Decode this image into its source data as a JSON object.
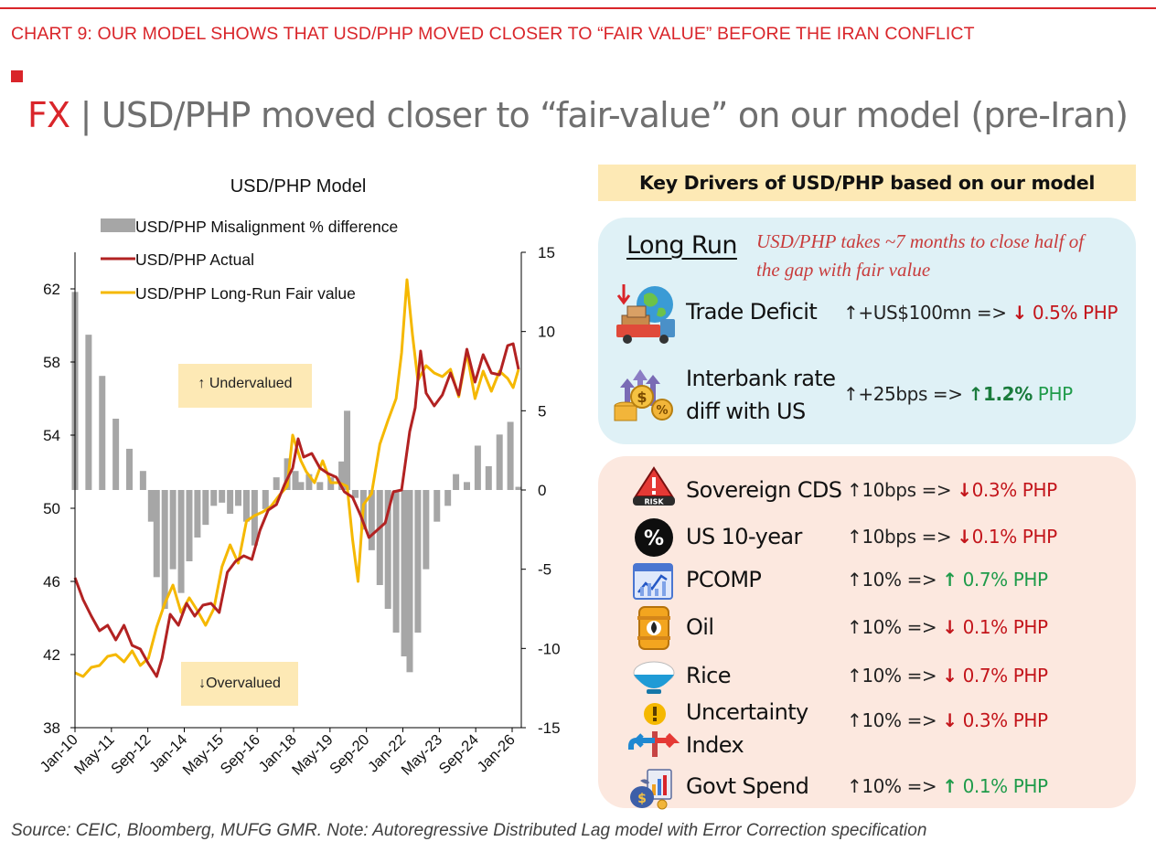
{
  "header": {
    "caption": "CHART 9: OUR MODEL SHOWS THAT USD/PHP MOVED CLOSER TO “FAIR VALUE” BEFORE THE IRAN CONFLICT",
    "headline_fx": "FX",
    "headline_sep": " | ",
    "headline_text": "USD/PHP moved closer to “fair-value” on our model (pre-Iran)"
  },
  "colors": {
    "accent": "#d9252a",
    "actual": "#b22222",
    "fair": "#f5b800",
    "bars": "#a6a6a6",
    "down": "#c3151b",
    "up": "#1f9b4a"
  },
  "chart_data": {
    "type": "line",
    "title": "USD/PHP Model",
    "x_ticks": [
      "Jan-10",
      "May-11",
      "Sep-12",
      "Jan-14",
      "May-15",
      "Sep-16",
      "Jan-18",
      "May-19",
      "Sep-20",
      "Jan-22",
      "May-23",
      "Sep-24",
      "Jan-26"
    ],
    "x_range": [
      2010.0,
      2026.4
    ],
    "left_axis": {
      "range": [
        38,
        64
      ],
      "ticks": [
        38,
        42,
        46,
        50,
        54,
        58,
        62
      ]
    },
    "right_axis": {
      "range": [
        -15,
        15
      ],
      "ticks": [
        -15,
        -10,
        -5,
        0,
        5,
        10,
        15
      ]
    },
    "legend_placement": "top-left",
    "annotations": {
      "undervalued": "↑ Undervalued",
      "overvalued": "↓Overvalued"
    },
    "series": [
      {
        "name": "USD/PHP Misalignment % difference",
        "type": "bar",
        "axis": "right",
        "x": [
          2010.0,
          2010.5,
          2011.0,
          2011.5,
          2012.0,
          2012.5,
          2012.8,
          2013.0,
          2013.3,
          2013.6,
          2013.9,
          2014.2,
          2014.5,
          2014.8,
          2015.1,
          2015.4,
          2015.7,
          2016.0,
          2016.3,
          2016.6,
          2017.0,
          2017.4,
          2017.8,
          2018.1,
          2018.3,
          2018.6,
          2019.0,
          2019.4,
          2019.8,
          2020.0,
          2020.3,
          2020.6,
          2020.9,
          2021.2,
          2021.5,
          2021.8,
          2022.1,
          2022.3,
          2022.6,
          2022.9,
          2023.3,
          2023.7,
          2024.0,
          2024.4,
          2024.8,
          2025.2,
          2025.6,
          2026.0,
          2026.3
        ],
        "values": [
          12.5,
          9.8,
          7.2,
          4.5,
          2.6,
          1.2,
          -2.0,
          -5.5,
          -7.5,
          -5.0,
          -6.5,
          -4.5,
          -3.0,
          -2.2,
          -1.0,
          -0.8,
          -1.5,
          -1.0,
          -2.0,
          -3.5,
          -1.2,
          0.8,
          2.0,
          1.2,
          0.5,
          1.0,
          0.5,
          0.8,
          1.8,
          5.0,
          -0.5,
          -2.5,
          -3.8,
          -6.0,
          -7.5,
          -9.0,
          -10.5,
          -11.5,
          -9.0,
          -5.0,
          -2.0,
          -1.0,
          1.0,
          0.5,
          2.8,
          1.5,
          3.5,
          4.3,
          0.2
        ]
      },
      {
        "name": "USD/PHP Actual",
        "type": "line",
        "axis": "left",
        "x": [
          2010.0,
          2010.3,
          2010.6,
          2010.9,
          2011.2,
          2011.5,
          2011.8,
          2012.1,
          2012.4,
          2012.7,
          2013.0,
          2013.2,
          2013.5,
          2013.8,
          2014.1,
          2014.4,
          2014.7,
          2015.0,
          2015.3,
          2015.6,
          2015.9,
          2016.2,
          2016.5,
          2016.8,
          2017.1,
          2017.4,
          2017.7,
          2018.0,
          2018.2,
          2018.4,
          2018.7,
          2019.0,
          2019.3,
          2019.6,
          2019.9,
          2020.2,
          2020.5,
          2020.8,
          2021.1,
          2021.4,
          2021.7,
          2022.0,
          2022.3,
          2022.5,
          2022.7,
          2022.9,
          2023.2,
          2023.5,
          2023.8,
          2024.1,
          2024.4,
          2024.7,
          2025.0,
          2025.3,
          2025.6,
          2025.9,
          2026.1,
          2026.3
        ],
        "values": [
          46.2,
          45.0,
          44.1,
          43.3,
          43.6,
          42.8,
          43.6,
          42.5,
          42.3,
          41.5,
          40.8,
          41.8,
          44.2,
          43.6,
          44.8,
          44.1,
          44.7,
          44.8,
          44.3,
          46.5,
          47.1,
          47.4,
          47.2,
          48.8,
          49.9,
          50.2,
          51.3,
          52.2,
          53.8,
          52.8,
          53.0,
          52.2,
          51.9,
          51.7,
          50.9,
          50.6,
          49.6,
          48.4,
          48.8,
          49.2,
          50.9,
          51.0,
          54.2,
          55.5,
          58.6,
          56.3,
          55.6,
          56.2,
          57.4,
          56.2,
          58.7,
          56.9,
          58.4,
          57.4,
          57.3,
          58.9,
          59.0,
          57.6
        ]
      },
      {
        "name": "USD/PHP Long-Run Fair value",
        "type": "line",
        "axis": "left",
        "x": [
          2010.0,
          2010.3,
          2010.6,
          2010.9,
          2011.2,
          2011.5,
          2011.8,
          2012.1,
          2012.4,
          2012.7,
          2013.0,
          2013.3,
          2013.6,
          2013.9,
          2014.2,
          2014.5,
          2014.8,
          2015.1,
          2015.4,
          2015.7,
          2016.0,
          2016.3,
          2016.6,
          2016.9,
          2017.2,
          2017.5,
          2017.8,
          2018.0,
          2018.3,
          2018.5,
          2018.8,
          2019.1,
          2019.4,
          2019.7,
          2020.0,
          2020.2,
          2020.4,
          2020.6,
          2020.9,
          2021.2,
          2021.5,
          2021.8,
          2022.0,
          2022.2,
          2022.4,
          2022.6,
          2022.9,
          2023.2,
          2023.5,
          2023.8,
          2024.1,
          2024.4,
          2024.7,
          2025.0,
          2025.3,
          2025.6,
          2025.9,
          2026.1,
          2026.3
        ],
        "values": [
          41.0,
          40.8,
          41.3,
          41.4,
          41.9,
          42.0,
          41.6,
          42.2,
          41.4,
          41.8,
          43.5,
          44.8,
          45.8,
          44.3,
          45.1,
          44.4,
          43.6,
          44.5,
          46.8,
          48.0,
          47.0,
          49.3,
          49.6,
          49.8,
          50.1,
          50.7,
          51.2,
          54.0,
          52.6,
          52.0,
          51.4,
          52.6,
          51.4,
          51.4,
          51.2,
          48.3,
          46.0,
          50.2,
          50.8,
          53.5,
          54.8,
          56.0,
          58.5,
          62.5,
          59.5,
          57.0,
          57.8,
          57.4,
          57.2,
          57.6,
          56.1,
          58.5,
          56.0,
          57.5,
          56.4,
          57.5,
          57.1,
          56.6,
          57.6
        ]
      }
    ]
  },
  "drivers": {
    "title": "Key Drivers of USD/PHP based on our model",
    "long_run": {
      "heading": "Long Run",
      "note": "USD/PHP takes ~7 months to close half of the gap with fair value",
      "items": [
        {
          "label": "Trade Deficit",
          "shock": "↑+US$100mn  => ",
          "arrow": "↓",
          "effect": " 0.5% PHP"
        },
        {
          "label_1": "Interbank rate",
          "label_2": "diff with US",
          "shock": "↑+25bps  => ",
          "arrow": "↑",
          "effect": "1.2%",
          "effect_unit": " PHP"
        }
      ]
    },
    "short_run": [
      {
        "label": "Sovereign CDS",
        "shock": "↑10bps => ",
        "arrow": "↓",
        "effect": "0.3% PHP",
        "dir": "down"
      },
      {
        "label": "US 10-year",
        "shock": "↑10bps => ",
        "arrow": "↓",
        "effect": "0.1% PHP",
        "dir": "down"
      },
      {
        "label": "PCOMP",
        "shock": "↑10% => ",
        "arrow": "↑",
        "effect": " 0.7% PHP",
        "dir": "up"
      },
      {
        "label": "Oil",
        "shock": "↑10% => ",
        "arrow": "↓",
        "effect": " 0.1% PHP",
        "dir": "down"
      },
      {
        "label": "Rice",
        "shock": "↑10% => ",
        "arrow": "↓",
        "effect": " 0.7% PHP",
        "dir": "down"
      },
      {
        "label_1": "Uncertainty",
        "label_2": "Index",
        "shock": "↑10% => ",
        "arrow": "↓",
        "effect": " 0.3% PHP",
        "dir": "down"
      },
      {
        "label": "Govt Spend",
        "shock": "↑10% => ",
        "arrow": "↑",
        "effect": " 0.1% PHP",
        "dir": "up"
      }
    ],
    "icons": {
      "risk_badge": "RISK",
      "percent_badge": "%"
    }
  },
  "source": "Source: CEIC, Bloomberg, MUFG GMR. Note: Autoregressive Distributed Lag model with Error Correction specification"
}
